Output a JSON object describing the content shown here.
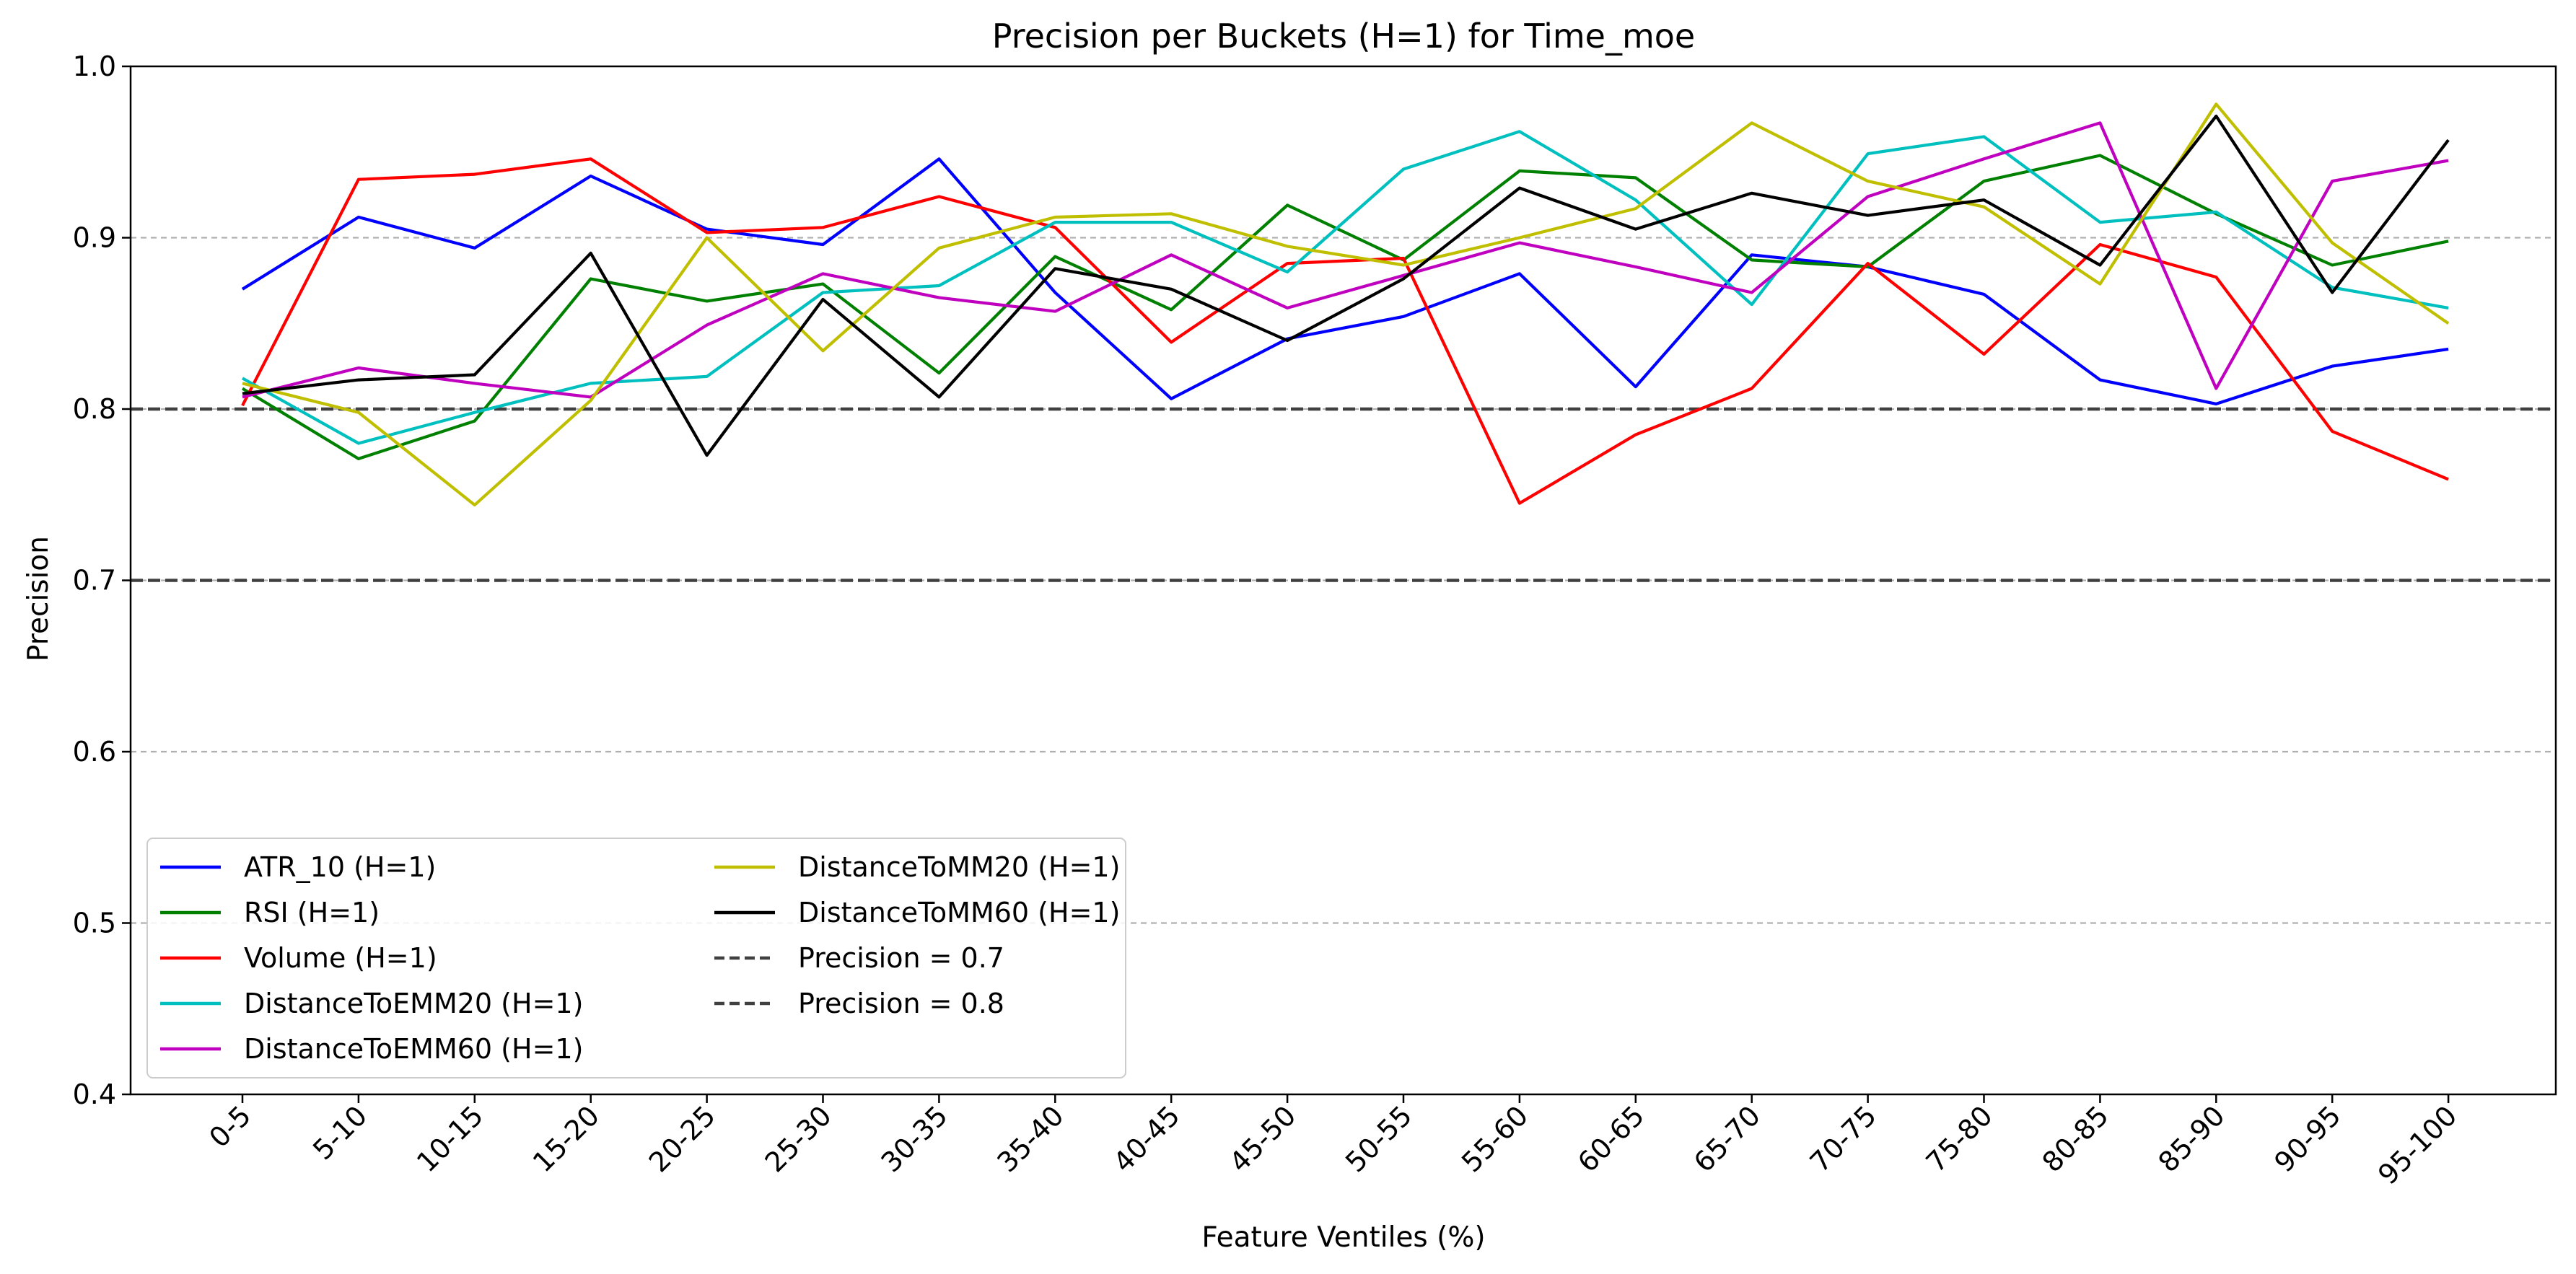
{
  "chart_data": {
    "type": "line",
    "title": "Precision per Buckets (H=1) for Time_moe",
    "xlabel": "Feature Ventiles (%)",
    "ylabel": "Precision",
    "ylim": [
      0.4,
      1.0
    ],
    "yticks": [
      "0.4",
      "0.5",
      "0.6",
      "0.7",
      "0.8",
      "0.9",
      "1.0"
    ],
    "ytick_values": [
      0.4,
      0.5,
      0.6,
      0.7,
      0.8,
      0.9,
      1.0
    ],
    "grid": "horizontal dashed",
    "legend_position": "lower-left",
    "categories": [
      "0-5",
      "5-10",
      "10-15",
      "15-20",
      "20-25",
      "25-30",
      "30-35",
      "35-40",
      "40-45",
      "45-50",
      "50-55",
      "55-60",
      "60-65",
      "65-70",
      "70-75",
      "75-80",
      "80-85",
      "85-90",
      "90-95",
      "95-100"
    ],
    "series": [
      {
        "name": "ATR_10 (H=1)",
        "color": "#0000ff",
        "values": [
          0.87,
          0.912,
          0.894,
          0.936,
          0.905,
          0.896,
          0.946,
          0.868,
          0.806,
          0.841,
          0.854,
          0.879,
          0.813,
          0.89,
          0.883,
          0.867,
          0.817,
          0.803,
          0.825,
          0.835
        ]
      },
      {
        "name": "RSI (H=1)",
        "color": "#008000",
        "values": [
          0.812,
          0.771,
          0.793,
          0.876,
          0.863,
          0.873,
          0.821,
          0.889,
          0.858,
          0.919,
          0.887,
          0.939,
          0.935,
          0.887,
          0.883,
          0.933,
          0.948,
          0.914,
          0.884,
          0.898
        ]
      },
      {
        "name": "Volume (H=1)",
        "color": "#ff0000",
        "values": [
          0.802,
          0.934,
          0.937,
          0.946,
          0.903,
          0.906,
          0.924,
          0.906,
          0.839,
          0.885,
          0.888,
          0.745,
          0.785,
          0.812,
          0.885,
          0.832,
          0.896,
          0.877,
          0.787,
          0.759
        ]
      },
      {
        "name": "DistanceToEMM20 (H=1)",
        "color": "#00bfbf",
        "values": [
          0.818,
          0.78,
          0.798,
          0.815,
          0.819,
          0.868,
          0.872,
          0.909,
          0.909,
          0.88,
          0.94,
          0.962,
          0.922,
          0.861,
          0.949,
          0.959,
          0.909,
          0.915,
          0.871,
          0.859
        ]
      },
      {
        "name": "DistanceToEMM60 (H=1)",
        "color": "#bf00bf",
        "values": [
          0.807,
          0.824,
          0.815,
          0.807,
          0.849,
          0.879,
          0.865,
          0.857,
          0.89,
          0.859,
          0.878,
          0.897,
          0.883,
          0.868,
          0.924,
          0.946,
          0.967,
          0.812,
          0.933,
          0.945
        ]
      },
      {
        "name": "DistanceToMM20 (H=1)",
        "color": "#bfbf00",
        "values": [
          0.815,
          0.798,
          0.744,
          0.805,
          0.9,
          0.834,
          0.894,
          0.912,
          0.914,
          0.895,
          0.884,
          0.9,
          0.917,
          0.967,
          0.933,
          0.918,
          0.873,
          0.978,
          0.897,
          0.85
        ]
      },
      {
        "name": "DistanceToMM60 (H=1)",
        "color": "#000000",
        "values": [
          0.809,
          0.817,
          0.82,
          0.891,
          0.773,
          0.864,
          0.807,
          0.882,
          0.87,
          0.84,
          0.876,
          0.929,
          0.905,
          0.926,
          0.913,
          0.922,
          0.884,
          0.971,
          0.868,
          0.957
        ]
      }
    ],
    "reference_lines": [
      {
        "name": "Precision = 0.7",
        "value": 0.7,
        "color": "#404040"
      },
      {
        "name": "Precision = 0.8",
        "value": 0.8,
        "color": "#404040"
      }
    ]
  }
}
